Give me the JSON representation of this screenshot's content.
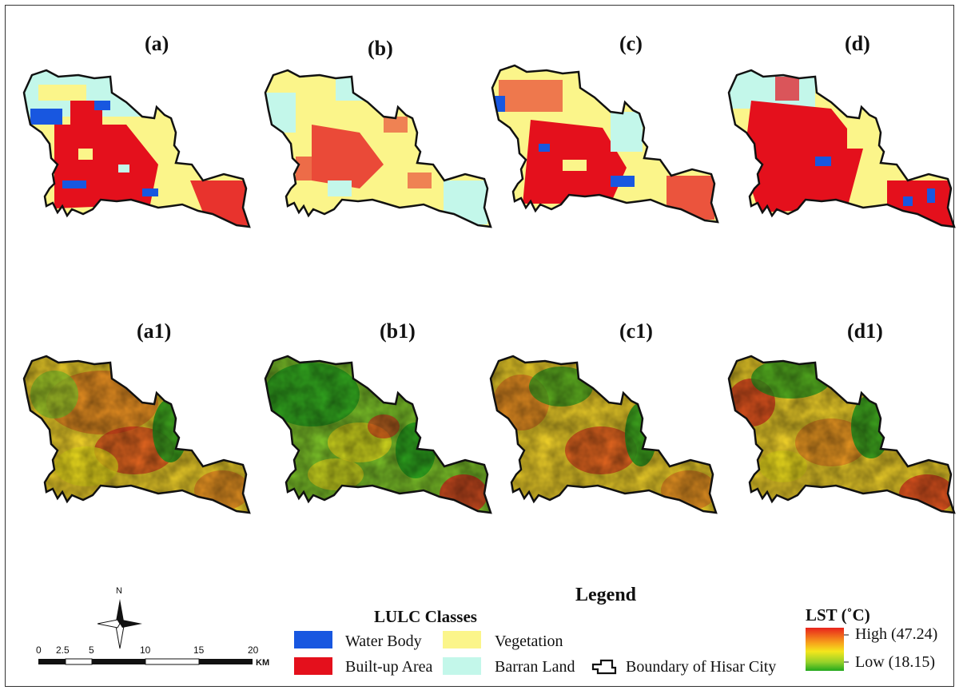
{
  "panels_top": [
    {
      "label": "(a)",
      "layer": "LULC"
    },
    {
      "label": "(b)",
      "layer": "LULC"
    },
    {
      "label": "(c)",
      "layer": "LULC"
    },
    {
      "label": "(d)",
      "layer": "LULC"
    }
  ],
  "panels_bottom": [
    {
      "label": "(a1)",
      "layer": "LST"
    },
    {
      "label": "(b1)",
      "layer": "LST"
    },
    {
      "label": "(c1)",
      "layer": "LST"
    },
    {
      "label": "(d1)",
      "layer": "LST"
    }
  ],
  "legend": {
    "title": "Legend",
    "lulc_title": "LULC Classes",
    "classes": [
      {
        "name": "Water Body",
        "color": "#1857e0"
      },
      {
        "name": "Vegetation",
        "color": "#fbf58a"
      },
      {
        "name": "Built-up Area",
        "color": "#e4101c"
      },
      {
        "name": "Barran Land",
        "color": "#c3f7ea"
      }
    ],
    "boundary_label": "Boundary of Hisar City",
    "lst_title": "LST (˚C)",
    "lst_high": "High (47.24)",
    "lst_low": "Low (18.15)",
    "lst_colors": {
      "high": "#e8231c",
      "mid": "#f4e61c",
      "low": "#22a81e"
    }
  },
  "north_arrow": {
    "label": "N"
  },
  "scale_bar": {
    "ticks": [
      "0",
      "2.5",
      "5",
      "10",
      "15",
      "20"
    ],
    "unit": "KM"
  }
}
